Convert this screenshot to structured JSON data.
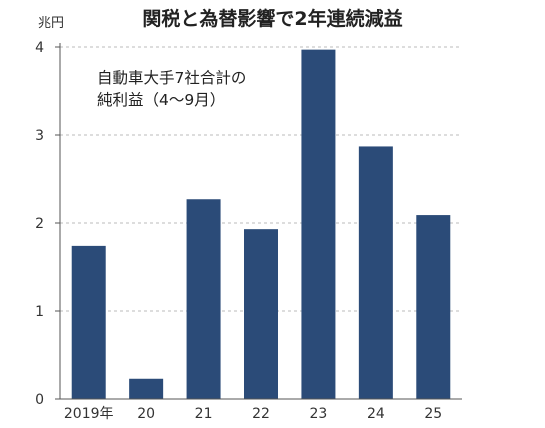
{
  "title": "関税と為替影響で2年連続減益",
  "chart_data": {
    "type": "bar",
    "title": "関税と為替影響で2年連続減益",
    "annotation_line1": "自動車大手7社合計の",
    "annotation_line2": "純利益（4〜9月）",
    "unit_label": "兆円",
    "categories": [
      "2019年",
      "20",
      "21",
      "22",
      "23",
      "24",
      "25"
    ],
    "values": [
      1.74,
      0.23,
      2.27,
      1.93,
      3.97,
      2.87,
      2.09
    ],
    "yticks": [
      "0",
      "1",
      "2",
      "3",
      "4"
    ],
    "ylim": [
      0,
      4
    ],
    "xlabel": "",
    "ylabel": "",
    "grid": true,
    "colors": {
      "bar": "#2b4b78",
      "grid": "#bbbbbb",
      "axis": "#555555"
    }
  }
}
